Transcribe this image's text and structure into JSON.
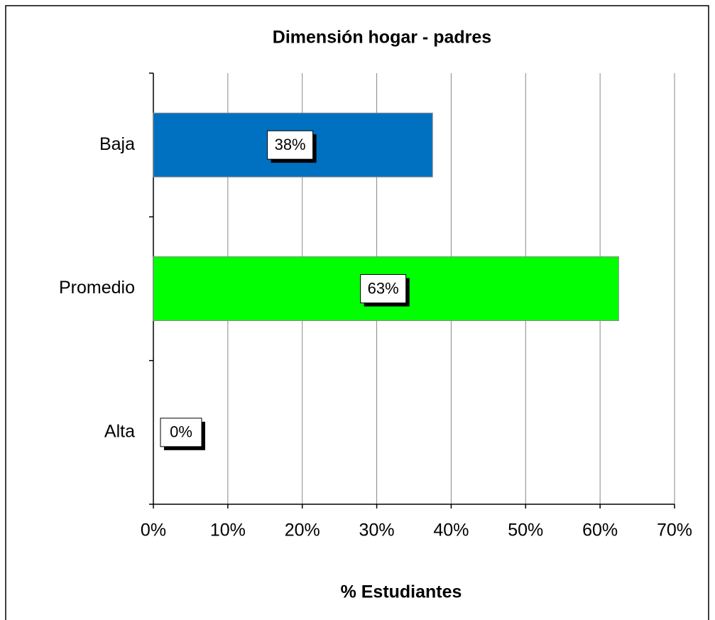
{
  "chart_data": {
    "type": "bar",
    "orientation": "horizontal",
    "title": "Dimensión  hogar - padres",
    "xlabel": "% Estudiantes",
    "categories": [
      "Baja",
      "Promedio",
      "Alta"
    ],
    "values": [
      37.5,
      62.5,
      0
    ],
    "value_labels": [
      "38%",
      "63%",
      "0%"
    ],
    "colors": [
      "#0070c0",
      "#00ff00",
      "#ff0000"
    ],
    "xlim": [
      0,
      70
    ],
    "xticks": [
      {
        "value": 0,
        "label": "0%"
      },
      {
        "value": 10,
        "label": "10%"
      },
      {
        "value": 20,
        "label": "20%"
      },
      {
        "value": 30,
        "label": "30%"
      },
      {
        "value": 40,
        "label": "40%"
      },
      {
        "value": 50,
        "label": "50%"
      },
      {
        "value": 60,
        "label": "60%"
      },
      {
        "value": 70,
        "label": "70%"
      }
    ],
    "grid": true
  }
}
